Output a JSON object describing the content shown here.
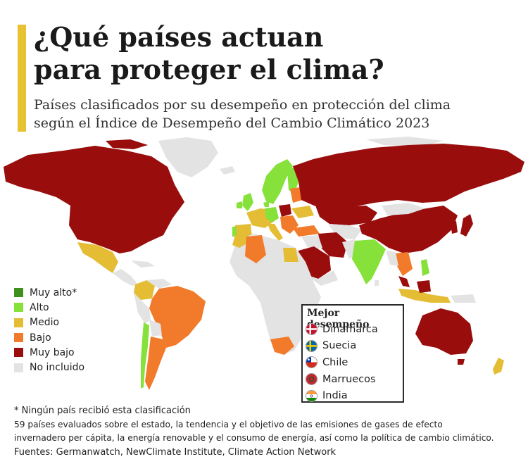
{
  "title_line1": "¿Qué países actuan",
  "title_line2": "para proteger el clima?",
  "subtitle_line1": "Países clasificados por su desempeño en protección del clima",
  "subtitle_line2": "según el Índice de Desempeño del Cambio Climático 2023",
  "legend": [
    {
      "label": "Muy alto*",
      "color": "#3f8f1f"
    },
    {
      "label": "Alto",
      "color": "#86e23a"
    },
    {
      "label": "Medio",
      "color": "#e5bd35"
    },
    {
      "label": "Bajo",
      "color": "#f27a2b"
    },
    {
      "label": "Muy bajo",
      "color": "#990d0d"
    },
    {
      "label": "No incluido",
      "color": "#e3e3e3"
    }
  ],
  "best": {
    "title": "Mejor desempeño",
    "countries": [
      {
        "name": "Dinamarca",
        "flag_icon": "denmark-flag-icon"
      },
      {
        "name": "Suecia",
        "flag_icon": "sweden-flag-icon"
      },
      {
        "name": "Chile",
        "flag_icon": "chile-flag-icon"
      },
      {
        "name": "Marruecos",
        "flag_icon": "morocco-flag-icon"
      },
      {
        "name": "India",
        "flag_icon": "india-flag-icon"
      }
    ]
  },
  "notes": {
    "footnote": "* Ningún país recibió esta clasificación",
    "methodology_line1": "59 países evaluados sobre el estado, la tendencia y el objetivo de las emisiones de gases de efecto",
    "methodology_line2": "invernadero per cápita, la energía renovable y el consumo de energía, así como la política de cambio climático.",
    "sources": "Fuentes: Germanwatch, NewClimate Institute, Climate Action Network"
  }
}
